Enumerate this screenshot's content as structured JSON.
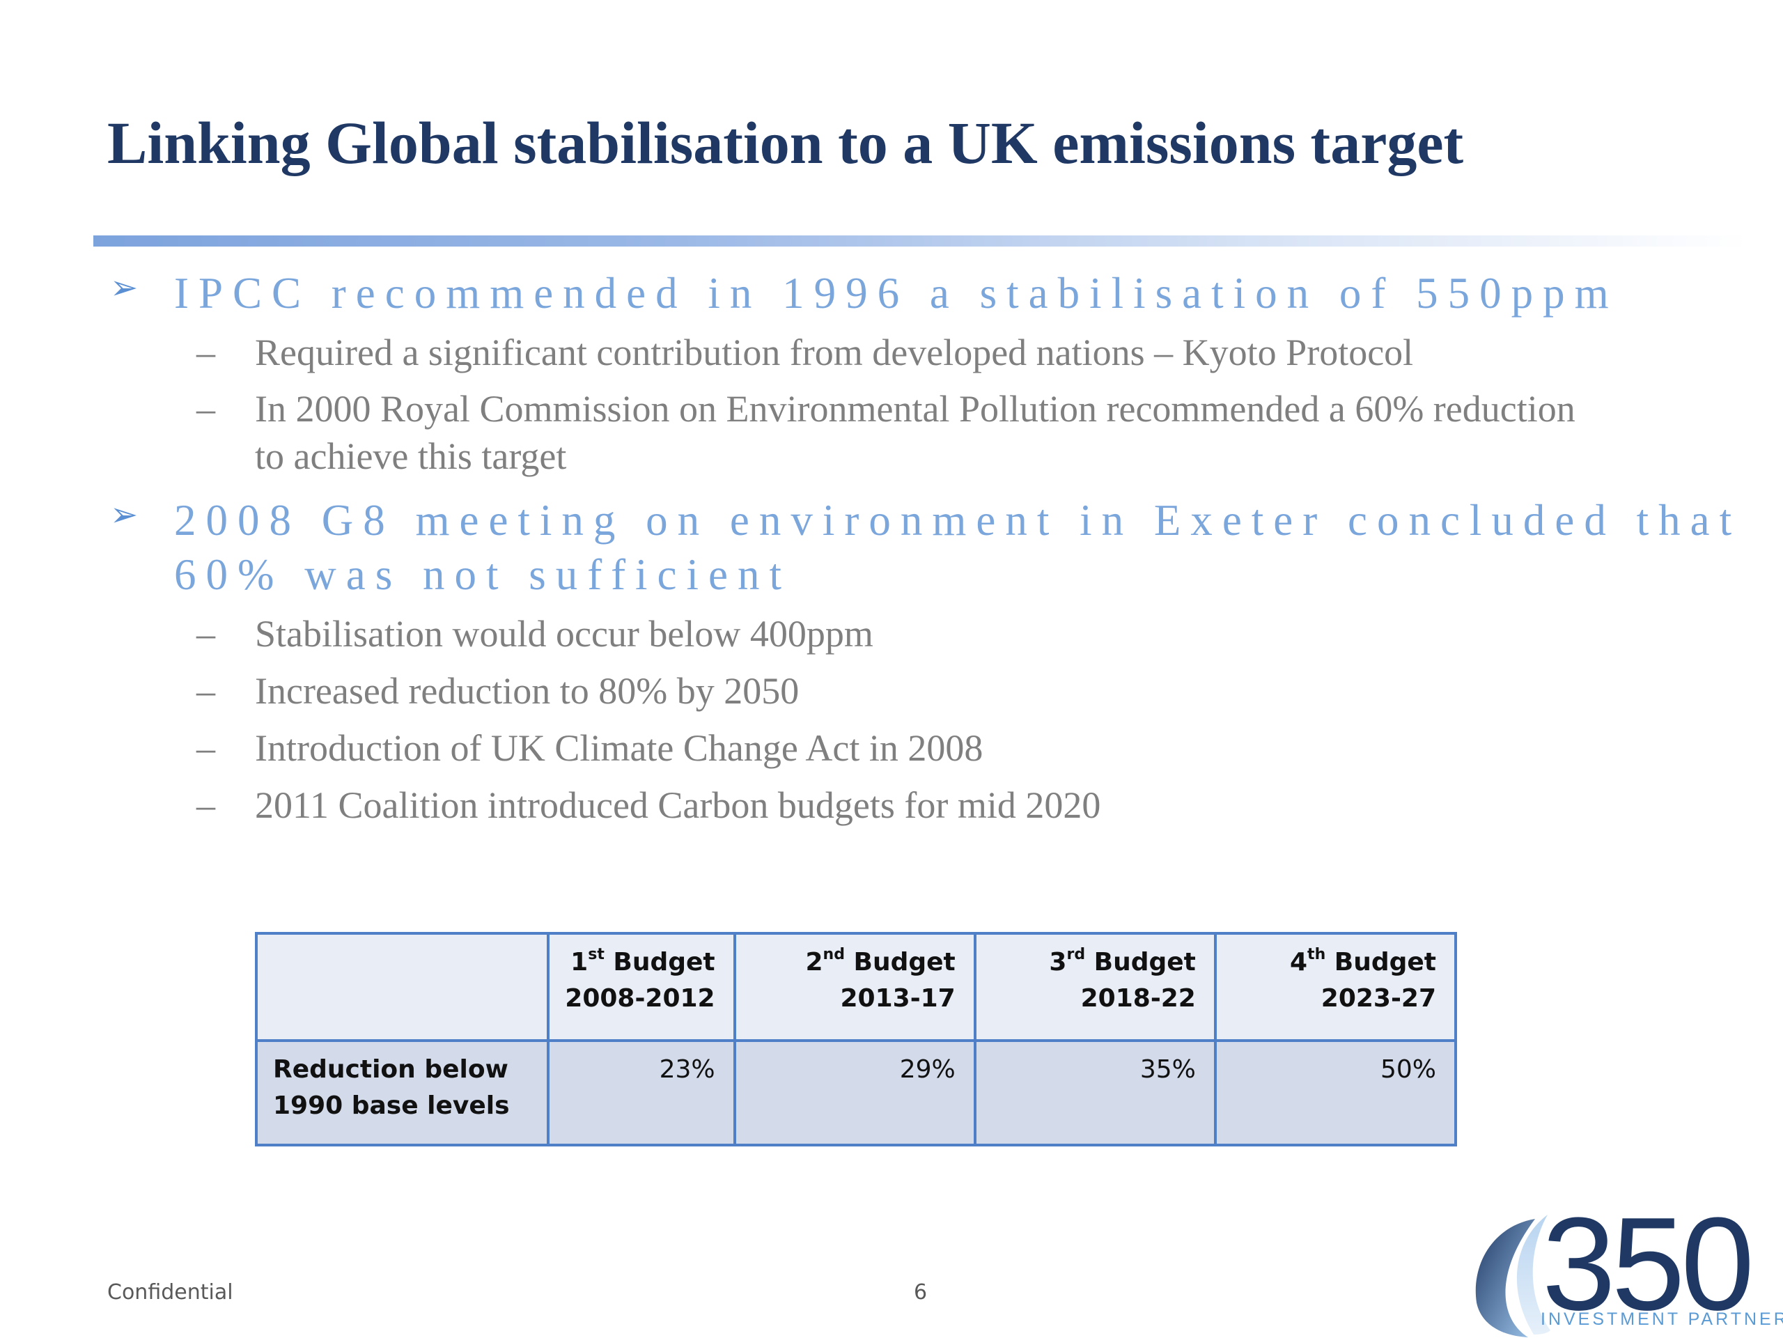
{
  "slide": {
    "title": "Linking Global stabilisation to a UK emissions target",
    "bullets": [
      {
        "marker": "➢",
        "lines": [
          "IPCC recommended in 1996 a stabilisation of 550ppm"
        ],
        "sub": [
          {
            "dash": "–",
            "lines": [
              "Required a significant contribution from developed nations – Kyoto Protocol"
            ]
          },
          {
            "dash": "–",
            "lines": [
              "In 2000 Royal Commission on Environmental Pollution recommended a 60% reduction",
              "to achieve this target"
            ]
          }
        ]
      },
      {
        "marker": "➢",
        "lines": [
          "2008 G8 meeting on environment in Exeter concluded that",
          "60% was not sufficient"
        ],
        "sub": [
          {
            "dash": "–",
            "lines": [
              "Stabilisation would occur below 400ppm"
            ]
          },
          {
            "dash": "–",
            "lines": [
              "Increased reduction to 80% by 2050"
            ]
          },
          {
            "dash": "–",
            "lines": [
              "Introduction of UK Climate Change Act in 2008"
            ]
          },
          {
            "dash": "–",
            "lines": [
              "2011 Coalition introduced Carbon budgets for mid 2020"
            ]
          }
        ]
      }
    ]
  },
  "table": {
    "header": [
      {
        "num": "",
        "sup": "",
        "word": "",
        "years": ""
      },
      {
        "num": "1",
        "sup": "st",
        "word": " Budget",
        "years": "2008-2012"
      },
      {
        "num": "2",
        "sup": "nd",
        "word": " Budget",
        "years": "2013-17"
      },
      {
        "num": "3",
        "sup": "rd",
        "word": " Budget",
        "years": "2018-22"
      },
      {
        "num": "4",
        "sup": "th",
        "word": " Budget",
        "years": "2023-27"
      }
    ],
    "row": {
      "label_lines": [
        "Reduction below",
        "1990 base levels"
      ],
      "values": [
        "23%",
        "29%",
        "35%",
        "50%"
      ]
    }
  },
  "footer": {
    "left": "Confidential",
    "page": "6"
  },
  "logo": {
    "number": "350",
    "subtitle": "INVESTMENT PARTNERS"
  },
  "colors": {
    "title": "#1f3864",
    "level1_text": "#7aa6dc",
    "level2_text": "#7f7f7f",
    "table_border": "#4f7fc6",
    "table_header_bg": "#e9edf6",
    "table_row_bg": "#d3dbea"
  }
}
